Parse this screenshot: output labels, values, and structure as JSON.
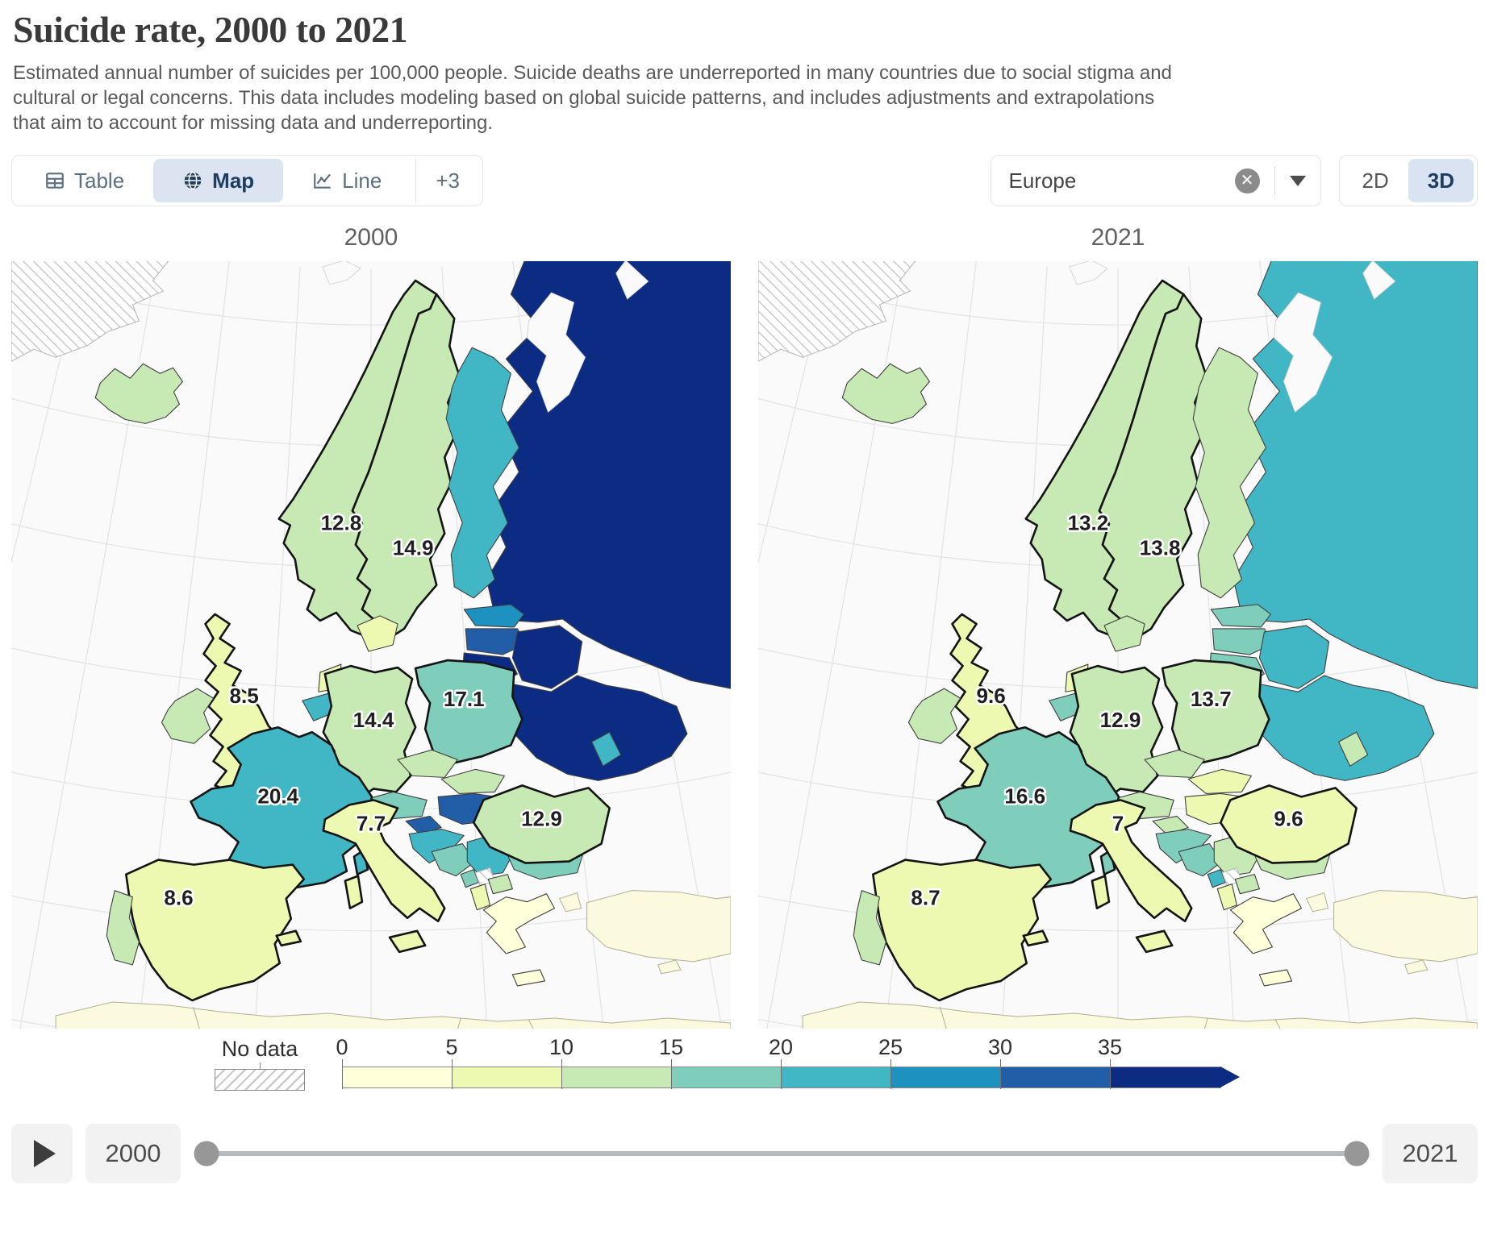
{
  "header": {
    "title": "Suicide rate, 2000 to 2021",
    "subtitle": "Estimated annual number of suicides per 100,000 people. Suicide deaths are underreported in many countries due to social stigma and cultural or legal concerns. This data includes modeling based on global suicide patterns, and includes adjustments and extrapolations that aim to account for missing data and underreporting."
  },
  "toolbar": {
    "tabs": [
      {
        "label": "Table",
        "icon": "table-icon",
        "active": false
      },
      {
        "label": "Map",
        "icon": "globe-icon",
        "active": true
      },
      {
        "label": "Line",
        "icon": "line-chart-icon",
        "active": false
      }
    ],
    "more_tabs_label": "+3",
    "region_select": {
      "value": "Europe"
    },
    "view_toggle": {
      "options": [
        "2D",
        "3D"
      ],
      "active": "3D"
    }
  },
  "chart_data": {
    "type": "choropleth-map-pair",
    "metric": "Estimated annual suicides per 100,000 people",
    "legend": {
      "no_data_label": "No data",
      "tick_labels": [
        "0",
        "5",
        "10",
        "15",
        "20",
        "25",
        "30",
        "35"
      ],
      "bin_colors": [
        "#ffffd9",
        "#edf8b1",
        "#c7e9b4",
        "#7fcdbb",
        "#41b6c4",
        "#1d91c0",
        "#225ea8",
        "#0c2c84"
      ]
    },
    "maps": [
      {
        "title": "2000",
        "labels": [
          {
            "country": "norway",
            "value": "12.8"
          },
          {
            "country": "sweden",
            "value": "14.9"
          },
          {
            "country": "uk",
            "value": "8.5"
          },
          {
            "country": "germany",
            "value": "14.4"
          },
          {
            "country": "poland",
            "value": "17.1"
          },
          {
            "country": "france",
            "value": "20.4"
          },
          {
            "country": "italy",
            "value": "7.7"
          },
          {
            "country": "romania",
            "value": "12.9"
          },
          {
            "country": "spain",
            "value": "8.6"
          }
        ],
        "fills": {
          "iceland": "#c7e9b4",
          "norway": "#c7e9b4",
          "sweden": "#c7e9b4",
          "finland": "#41b6c4",
          "denmark": "#edf8b1",
          "estonia": "#1d91c0",
          "latvia": "#225ea8",
          "lithuania": "#0c2c84",
          "russia": "#0c2c84",
          "belarus": "#0c2c84",
          "ukraine": "#0c2c84",
          "moldova": "#41b6c4",
          "uk": "#edf8b1",
          "ireland": "#c7e9b4",
          "netherlands": "#edf8b1",
          "belgium": "#41b6c4",
          "germany": "#c7e9b4",
          "poland": "#7fcdbb",
          "czechia": "#c7e9b4",
          "slovakia": "#c7e9b4",
          "austria": "#7fcdbb",
          "switzerland": "#41b6c4",
          "france": "#41b6c4",
          "spain": "#edf8b1",
          "portugal": "#c7e9b4",
          "italy": "#edf8b1",
          "hungary": "#225ea8",
          "slovenia": "#225ea8",
          "croatia": "#41b6c4",
          "bosnia": "#7fcdbb",
          "serbia": "#41b6c4",
          "montenegro": "#7fcdbb",
          "albania": "#edf8b1",
          "macedonia": "#c7e9b4",
          "bulgaria": "#7fcdbb",
          "greece": "#ffffd9",
          "romania": "#c7e9b4"
        }
      },
      {
        "title": "2021",
        "labels": [
          {
            "country": "norway",
            "value": "13.2"
          },
          {
            "country": "sweden",
            "value": "13.8"
          },
          {
            "country": "uk",
            "value": "9.6"
          },
          {
            "country": "germany",
            "value": "12.9"
          },
          {
            "country": "poland",
            "value": "13.7"
          },
          {
            "country": "france",
            "value": "16.6"
          },
          {
            "country": "italy",
            "value": "7"
          },
          {
            "country": "romania",
            "value": "9.6"
          },
          {
            "country": "spain",
            "value": "8.7"
          }
        ],
        "fills": {
          "iceland": "#c7e9b4",
          "norway": "#c7e9b4",
          "sweden": "#c7e9b4",
          "finland": "#c7e9b4",
          "denmark": "#c7e9b4",
          "estonia": "#7fcdbb",
          "latvia": "#7fcdbb",
          "lithuania": "#7fcdbb",
          "russia": "#41b6c4",
          "belarus": "#41b6c4",
          "ukraine": "#41b6c4",
          "moldova": "#c7e9b4",
          "uk": "#edf8b1",
          "ireland": "#c7e9b4",
          "netherlands": "#edf8b1",
          "belgium": "#7fcdbb",
          "germany": "#c7e9b4",
          "poland": "#c7e9b4",
          "czechia": "#c7e9b4",
          "slovakia": "#edf8b1",
          "austria": "#c7e9b4",
          "switzerland": "#c7e9b4",
          "france": "#7fcdbb",
          "spain": "#edf8b1",
          "portugal": "#c7e9b4",
          "italy": "#edf8b1",
          "hungary": "#edf8b1",
          "slovenia": "#c7e9b4",
          "croatia": "#7fcdbb",
          "bosnia": "#7fcdbb",
          "serbia": "#c7e9b4",
          "montenegro": "#41b6c4",
          "albania": "#edf8b1",
          "macedonia": "#c7e9b4",
          "bulgaria": "#c7e9b4",
          "greece": "#ffffd9",
          "romania": "#edf8b1"
        }
      }
    ]
  },
  "timeline": {
    "start_year": "2000",
    "end_year": "2021"
  }
}
